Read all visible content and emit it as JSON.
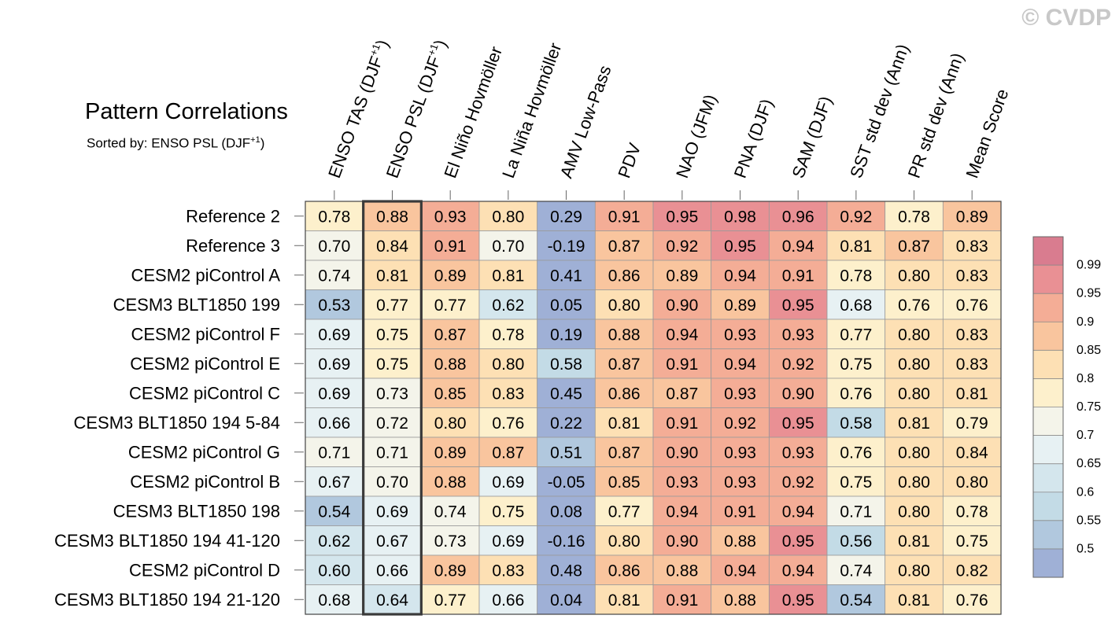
{
  "title": "Pattern Correlations",
  "subtitle_prefix": "Sorted by: ENSO PSL (DJF",
  "subtitle_sup": "+1",
  "subtitle_suffix": ")",
  "watermark": "© CVDP",
  "chart_data": {
    "type": "heatmap",
    "columns": [
      {
        "label": "ENSO TAS (DJF",
        "sup": "+1",
        "tail": ")"
      },
      {
        "label": "ENSO PSL (DJF",
        "sup": "+1",
        "tail": ")"
      },
      {
        "label": "El Niño Hovmöller"
      },
      {
        "label": "La Niña Hovmöller"
      },
      {
        "label": "AMV Low-Pass"
      },
      {
        "label": "PDV"
      },
      {
        "label": "NAO (JFM)"
      },
      {
        "label": "PNA (DJF)"
      },
      {
        "label": "SAM (DJF)"
      },
      {
        "label": "SST std dev (Ann)"
      },
      {
        "label": "PR std dev (Ann)"
      },
      {
        "label": "Mean Score"
      }
    ],
    "highlighted_column": "ENSO PSL (DJF+1)",
    "rows": [
      "Reference 2",
      "Reference 3",
      "CESM2 piControl A",
      "CESM3 BLT1850 199",
      "CESM2 piControl F",
      "CESM2 piControl E",
      "CESM2 piControl C",
      "CESM3 BLT1850 194 5-84",
      "CESM2 piControl G",
      "CESM2 piControl B",
      "CESM3 BLT1850 198",
      "CESM3 BLT1850 194 41-120",
      "CESM2 piControl D",
      "CESM3 BLT1850 194 21-120"
    ],
    "values": [
      [
        "0.78",
        "0.88",
        "0.93",
        "0.80",
        "0.29",
        "0.91",
        "0.95",
        "0.98",
        "0.96",
        "0.92",
        "0.78",
        "0.89"
      ],
      [
        "0.70",
        "0.84",
        "0.91",
        "0.70",
        "-0.19",
        "0.87",
        "0.92",
        "0.95",
        "0.94",
        "0.81",
        "0.87",
        "0.83"
      ],
      [
        "0.74",
        "0.81",
        "0.89",
        "0.81",
        "0.41",
        "0.86",
        "0.89",
        "0.94",
        "0.91",
        "0.78",
        "0.80",
        "0.83"
      ],
      [
        "0.53",
        "0.77",
        "0.77",
        "0.62",
        "0.05",
        "0.80",
        "0.90",
        "0.89",
        "0.95",
        "0.68",
        "0.76",
        "0.76"
      ],
      [
        "0.69",
        "0.75",
        "0.87",
        "0.78",
        "0.19",
        "0.88",
        "0.94",
        "0.93",
        "0.93",
        "0.77",
        "0.80",
        "0.83"
      ],
      [
        "0.69",
        "0.75",
        "0.88",
        "0.80",
        "0.58",
        "0.87",
        "0.91",
        "0.94",
        "0.92",
        "0.75",
        "0.80",
        "0.83"
      ],
      [
        "0.69",
        "0.73",
        "0.85",
        "0.83",
        "0.45",
        "0.86",
        "0.87",
        "0.93",
        "0.90",
        "0.76",
        "0.80",
        "0.81"
      ],
      [
        "0.66",
        "0.72",
        "0.80",
        "0.76",
        "0.22",
        "0.81",
        "0.91",
        "0.92",
        "0.95",
        "0.58",
        "0.81",
        "0.79"
      ],
      [
        "0.71",
        "0.71",
        "0.89",
        "0.87",
        "0.51",
        "0.87",
        "0.90",
        "0.93",
        "0.93",
        "0.76",
        "0.80",
        "0.84"
      ],
      [
        "0.67",
        "0.70",
        "0.88",
        "0.69",
        "-0.05",
        "0.85",
        "0.93",
        "0.93",
        "0.92",
        "0.75",
        "0.80",
        "0.80"
      ],
      [
        "0.54",
        "0.69",
        "0.74",
        "0.75",
        "0.08",
        "0.77",
        "0.94",
        "0.91",
        "0.94",
        "0.71",
        "0.80",
        "0.78"
      ],
      [
        "0.62",
        "0.67",
        "0.73",
        "0.69",
        "-0.16",
        "0.80",
        "0.90",
        "0.88",
        "0.95",
        "0.56",
        "0.81",
        "0.75"
      ],
      [
        "0.60",
        "0.66",
        "0.89",
        "0.83",
        "0.48",
        "0.86",
        "0.88",
        "0.94",
        "0.94",
        "0.74",
        "0.80",
        "0.82"
      ],
      [
        "0.68",
        "0.64",
        "0.77",
        "0.66",
        "0.04",
        "0.81",
        "0.91",
        "0.88",
        "0.95",
        "0.54",
        "0.81",
        "0.76"
      ]
    ],
    "colorbar": {
      "levels": [
        "0.5",
        "0.55",
        "0.6",
        "0.65",
        "0.7",
        "0.75",
        "0.8",
        "0.85",
        "0.9",
        "0.95",
        "0.99"
      ],
      "colors": [
        "#9fb0d6",
        "#b1c8de",
        "#c3dbe6",
        "#d4e6ed",
        "#e7f1f3",
        "#f4f4ea",
        "#fdf0cc",
        "#fde0b4",
        "#f9c59e",
        "#f4ad96",
        "#e99094",
        "#d97c8f"
      ]
    }
  }
}
